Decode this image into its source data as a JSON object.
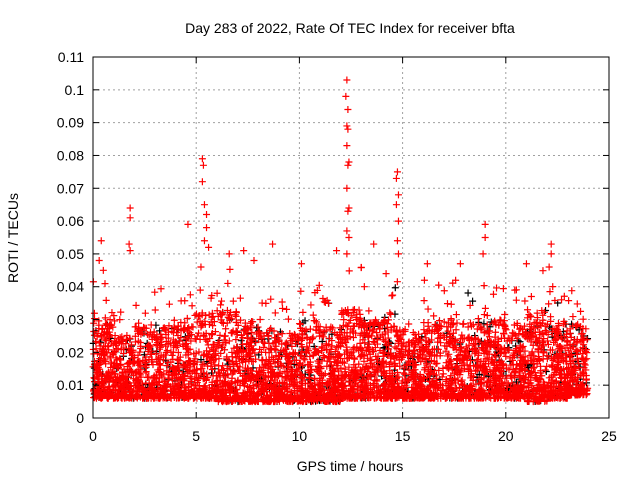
{
  "chart_data": {
    "type": "scatter",
    "title": "Day 283 of 2022, Rate Of TEC Index for receiver bfta",
    "xlabel": "GPS time / hours",
    "ylabel": "ROTI / TECUs",
    "xlim": [
      0,
      25
    ],
    "ylim": [
      0,
      0.11
    ],
    "xticks": [
      "0",
      "5",
      "10",
      "15",
      "20",
      "25"
    ],
    "xtick_values": [
      0,
      5,
      10,
      15,
      20,
      25
    ],
    "yticks": [
      "0",
      "0.01",
      "0.02",
      "0.03",
      "0.04",
      "0.05",
      "0.06",
      "0.07",
      "0.08",
      "0.09",
      "0.1",
      "0.11"
    ],
    "ytick_values": [
      0,
      0.01,
      0.02,
      0.03,
      0.04,
      0.05,
      0.06,
      0.07,
      0.08,
      0.09,
      0.1,
      0.11
    ],
    "grid": true,
    "marker": "plus",
    "series_colors": [
      "#ff0000",
      "#000000"
    ],
    "baseline_band": {
      "hours": [
        0,
        1,
        2,
        3,
        4,
        5,
        6,
        7,
        8,
        9,
        10,
        11,
        12,
        13,
        14,
        15,
        16,
        17,
        18,
        19,
        20,
        21,
        22,
        23
      ],
      "lower": [
        0.006,
        0.006,
        0.006,
        0.006,
        0.006,
        0.006,
        0.005,
        0.005,
        0.005,
        0.005,
        0.005,
        0.005,
        0.006,
        0.006,
        0.006,
        0.006,
        0.006,
        0.006,
        0.006,
        0.006,
        0.006,
        0.005,
        0.006,
        0.007
      ],
      "upper": [
        0.036,
        0.03,
        0.034,
        0.034,
        0.035,
        0.04,
        0.04,
        0.036,
        0.032,
        0.031,
        0.036,
        0.034,
        0.04,
        0.036,
        0.036,
        0.032,
        0.036,
        0.036,
        0.035,
        0.036,
        0.034,
        0.04,
        0.036,
        0.034
      ],
      "end_hour": 24
    },
    "spikes": [
      [
        0.4,
        0.054
      ],
      [
        0.3,
        0.048
      ],
      [
        0.5,
        0.045
      ],
      [
        1.8,
        0.064
      ],
      [
        1.8,
        0.061
      ],
      [
        1.75,
        0.053
      ],
      [
        1.8,
        0.051
      ],
      [
        4.6,
        0.059
      ],
      [
        5.3,
        0.079
      ],
      [
        5.35,
        0.077
      ],
      [
        5.3,
        0.072
      ],
      [
        5.4,
        0.065
      ],
      [
        5.5,
        0.062
      ],
      [
        5.5,
        0.058
      ],
      [
        5.4,
        0.054
      ],
      [
        5.6,
        0.052
      ],
      [
        6.6,
        0.05
      ],
      [
        7.3,
        0.051
      ],
      [
        7.8,
        0.048
      ],
      [
        8.7,
        0.053
      ],
      [
        10.1,
        0.047
      ],
      [
        11.8,
        0.051
      ],
      [
        12.3,
        0.103
      ],
      [
        12.25,
        0.098
      ],
      [
        12.35,
        0.094
      ],
      [
        12.3,
        0.089
      ],
      [
        12.35,
        0.088
      ],
      [
        12.3,
        0.083
      ],
      [
        12.4,
        0.078
      ],
      [
        12.35,
        0.077
      ],
      [
        12.3,
        0.07
      ],
      [
        12.4,
        0.064
      ],
      [
        12.35,
        0.063
      ],
      [
        12.3,
        0.057
      ],
      [
        12.4,
        0.055
      ],
      [
        12.3,
        0.05
      ],
      [
        13.6,
        0.053
      ],
      [
        14.2,
        0.044
      ],
      [
        14.75,
        0.075
      ],
      [
        14.7,
        0.073
      ],
      [
        14.8,
        0.068
      ],
      [
        14.7,
        0.065
      ],
      [
        14.8,
        0.06
      ],
      [
        14.75,
        0.054
      ],
      [
        14.8,
        0.05
      ],
      [
        16.2,
        0.047
      ],
      [
        17.8,
        0.047
      ],
      [
        18.9,
        0.05
      ],
      [
        19.0,
        0.059
      ],
      [
        19.0,
        0.055
      ],
      [
        21.0,
        0.047
      ],
      [
        22.2,
        0.053
      ],
      [
        22.2,
        0.05
      ],
      [
        22.1,
        0.046
      ]
    ]
  }
}
